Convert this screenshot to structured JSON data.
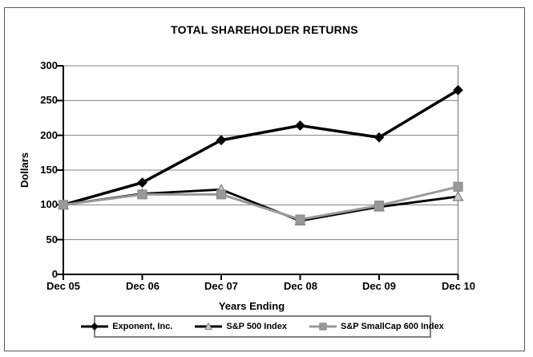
{
  "chart_data": {
    "type": "line",
    "title": "TOTAL SHAREHOLDER RETURNS",
    "xlabel": "Years Ending",
    "ylabel": "Dollars",
    "categories": [
      "Dec 05",
      "Dec 06",
      "Dec 07",
      "Dec 08",
      "Dec 09",
      "Dec 10"
    ],
    "ylim": [
      0,
      300
    ],
    "ytick_step": 50,
    "yticks": [
      "300",
      "250",
      "200",
      "150",
      "100",
      "50",
      "0"
    ],
    "grid": "horizontal-only",
    "legend_position": "bottom",
    "series": [
      {
        "name": "Exponent, Inc.",
        "marker": "diamond",
        "color": "#000000",
        "marker_fill": "#000000",
        "marker_stroke": "#000000",
        "values": [
          100,
          132,
          193,
          214,
          197,
          265
        ]
      },
      {
        "name": "S&P 500 Index",
        "marker": "triangle",
        "color": "#000000",
        "marker_fill": "#cccccc",
        "marker_stroke": "#7f7f7f",
        "values": [
          100,
          116,
          122,
          77,
          97,
          112
        ]
      },
      {
        "name": "S&P SmallCap 600 Index",
        "marker": "square",
        "color": "#999999",
        "marker_fill": "#999999",
        "marker_stroke": "#8c8c8c",
        "values": [
          100,
          115,
          115,
          79,
          99,
          126
        ]
      }
    ],
    "colors": {
      "axis": "#000000",
      "grid": "#808080",
      "plot_frame": "#808080",
      "page_frame": "#595959",
      "legend_border": "#808080"
    }
  }
}
